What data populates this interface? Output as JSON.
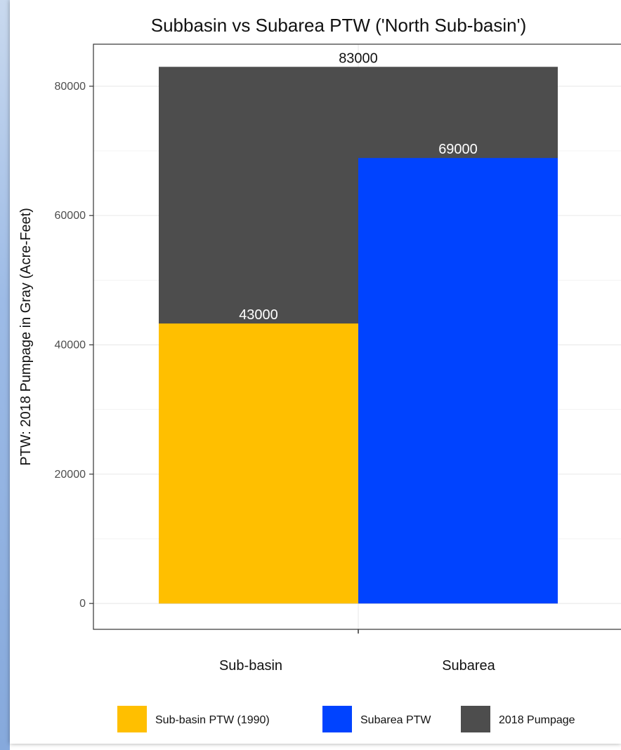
{
  "chart_data": {
    "type": "bar",
    "title": "Subbasin vs Subarea PTW ('North Sub-basin')",
    "xlabel": "",
    "ylabel": "PTW: 2018 Pumpage in Gray (Acre-Feet)",
    "categories": [
      "Sub-basin",
      "Subarea"
    ],
    "ylim": [
      -4000,
      86500
    ],
    "yticks": [
      0,
      20000,
      40000,
      60000,
      80000
    ],
    "ytick_labels": [
      "0",
      "20000",
      "40000",
      "60000",
      "80000"
    ],
    "grid": true,
    "legend_position": "bottom",
    "background_bar": {
      "name": "2018 Pumpage",
      "value": 83000,
      "label": "83000",
      "color": "#4d4d4d"
    },
    "series": [
      {
        "name": "Sub-basin PTW (1990)",
        "category": "Sub-basin",
        "value": 43300,
        "label": "43000",
        "color": "#ffbf00"
      },
      {
        "name": "Subarea PTW",
        "category": "Subarea",
        "value": 68900,
        "label": "69000",
        "color": "#0043ff"
      }
    ],
    "legend": [
      {
        "label": "Sub-basin PTW (1990)",
        "color": "#ffbf00"
      },
      {
        "label": "Subarea PTW",
        "color": "#0043ff"
      },
      {
        "label": "2018 Pumpage",
        "color": "#4d4d4d"
      }
    ]
  }
}
